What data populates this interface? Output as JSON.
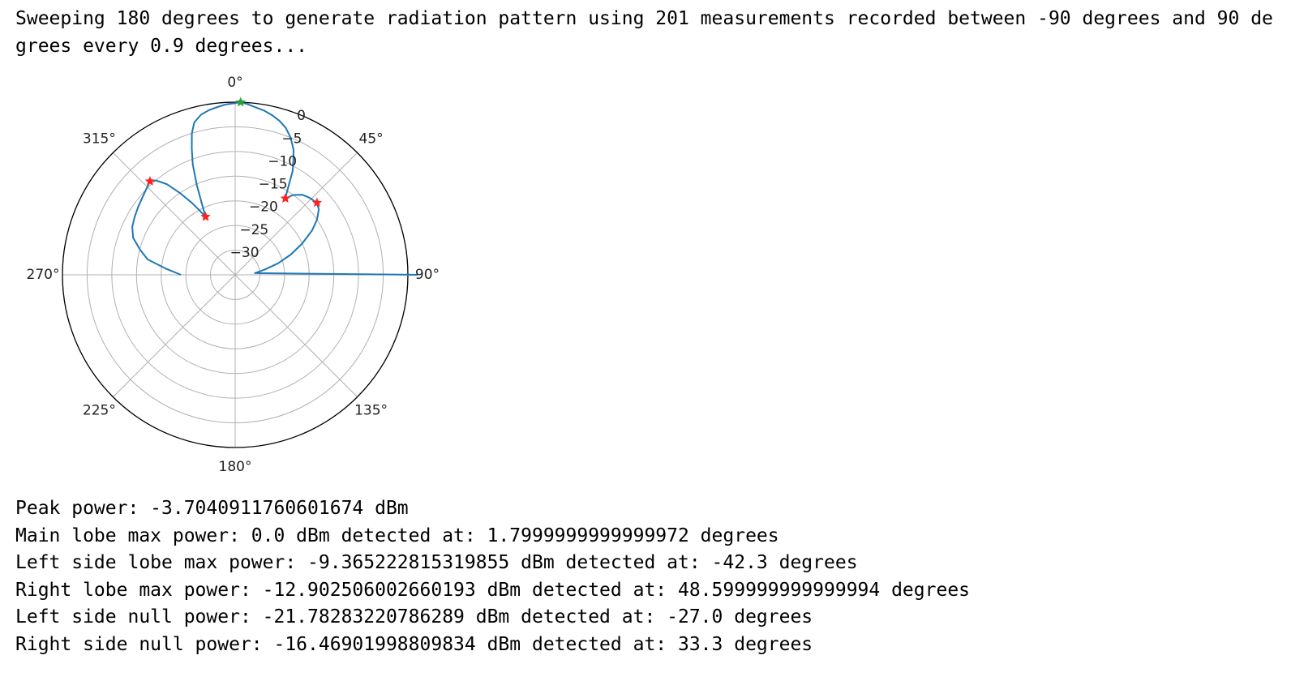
{
  "header_text": "Sweeping 180 degrees to generate radiation pattern using 201 measurements recorded between -90 degrees and 90 degrees every 0.9 degrees...",
  "results": [
    "Peak power: -3.7040911760601674 dBm",
    "Main lobe max power: 0.0 dBm detected at: 1.7999999999999972 degrees",
    "Left side lobe max power: -9.365222815319855 dBm detected at: -42.3 degrees",
    "Right lobe max power: -12.902506002660193 dBm detected at: 48.599999999999994 degrees",
    "Left side null power: -21.78283220786289 dBm detected at: -27.0 degrees",
    "Right side null power: -16.46901998809834 dBm detected at: 33.3 degrees"
  ],
  "colors": {
    "series": "#1f77b4",
    "marker_red": "#ff2020",
    "marker_green": "#2ca02c",
    "grid": "#b0b0b0",
    "spine": "#000000"
  },
  "chart_data": {
    "type": "line",
    "projection": "polar",
    "theta_zero_location": "N",
    "theta_direction": "clockwise",
    "angle_ticks": [
      "0°",
      "45°",
      "90°",
      "135°",
      "180°",
      "225°",
      "270°",
      "315°"
    ],
    "angle_tick_values": [
      0,
      45,
      90,
      135,
      180,
      225,
      270,
      315
    ],
    "radial_ticks": [
      "−30",
      "−25",
      "−20",
      "−15",
      "−10",
      "−5",
      "0"
    ],
    "radial_tick_values": [
      -30,
      -25,
      -20,
      -15,
      -10,
      -5,
      0
    ],
    "rlim": [
      -35,
      0
    ],
    "grid": true,
    "series": [
      {
        "x_deg": [
          -90,
          -85,
          -80,
          -75,
          -70,
          -65,
          -60,
          -55,
          -50,
          -45,
          -42.3,
          -40,
          -37,
          -34,
          -31,
          -29,
          -27,
          -25,
          -23,
          -21,
          -19,
          -17,
          -15,
          -12,
          -9,
          -6,
          -3,
          0,
          1.8,
          4,
          7,
          10,
          13,
          16,
          19,
          22,
          25,
          27,
          29,
          31,
          33.3,
          36,
          40,
          44,
          48.6,
          52,
          56,
          60,
          65,
          70,
          75,
          80,
          85,
          90
        ],
        "y_dbm": [
          -24,
          -21,
          -17,
          -15,
          -13,
          -12,
          -11.5,
          -11,
          -10.5,
          -9.8,
          -9.4,
          -10,
          -12,
          -15,
          -18,
          -20,
          -21.8,
          -19,
          -15,
          -11,
          -8,
          -5,
          -3,
          -1.8,
          -1.2,
          -0.8,
          -0.4,
          -0.2,
          0,
          -0.3,
          -0.8,
          -1.2,
          -1.8,
          -2.5,
          -3.5,
          -5,
          -7,
          -9,
          -11,
          -14,
          -16.5,
          -15,
          -13.8,
          -13.3,
          -12.9,
          -13.5,
          -15,
          -17,
          -20,
          -23,
          -26,
          -29,
          -31,
          2
        ]
      }
    ],
    "markers": [
      {
        "label": "main lobe",
        "theta_deg": 1.8,
        "r": 0,
        "color": "green"
      },
      {
        "label": "left side lobe",
        "theta_deg": -42.3,
        "r": -9.365222815319855,
        "color": "red"
      },
      {
        "label": "right lobe",
        "theta_deg": 48.6,
        "r": -12.902506002660193,
        "color": "red"
      },
      {
        "label": "left side null",
        "theta_deg": -27.0,
        "r": -21.78283220786289,
        "color": "red"
      },
      {
        "label": "right side null",
        "theta_deg": 33.3,
        "r": -16.46901998809834,
        "color": "red"
      }
    ]
  }
}
